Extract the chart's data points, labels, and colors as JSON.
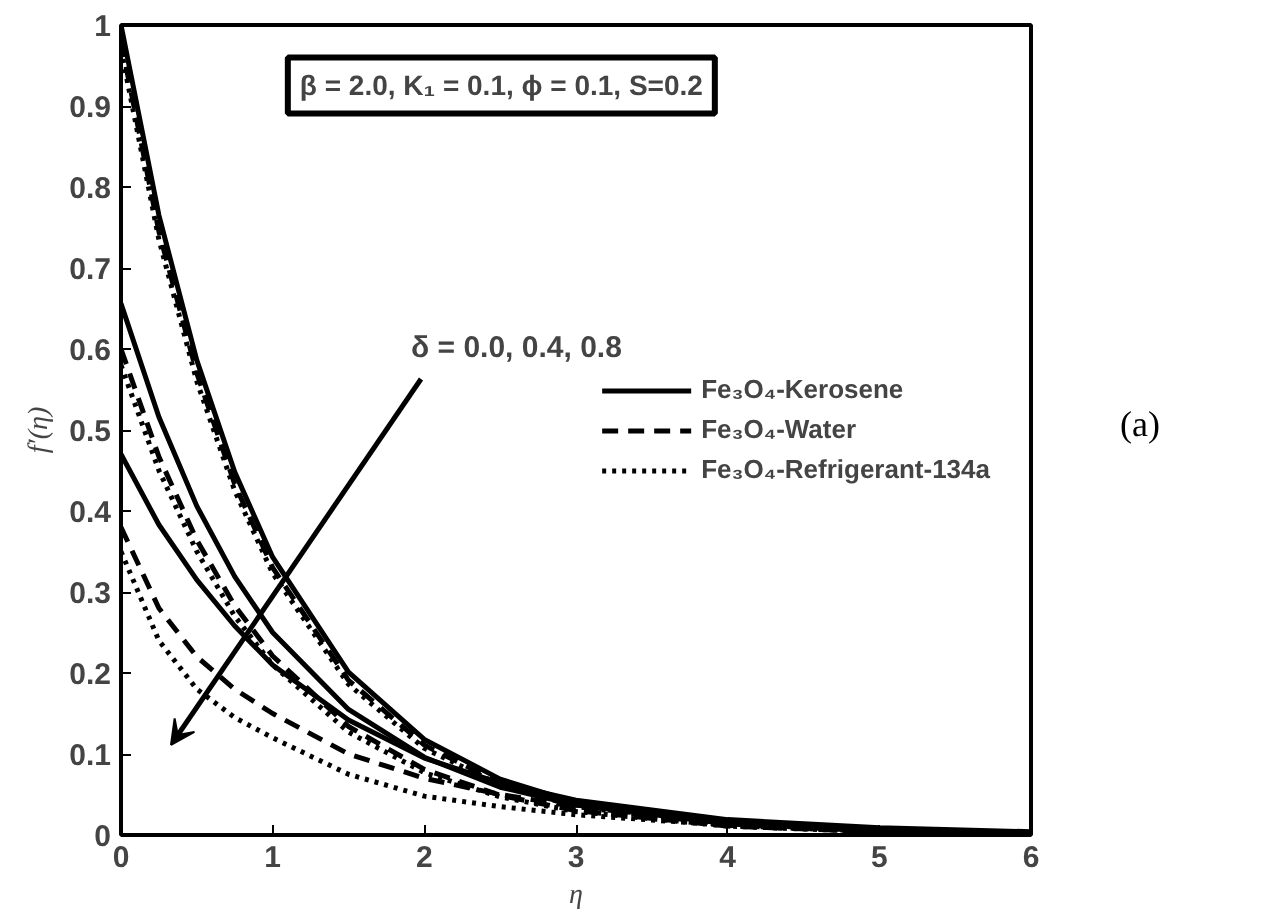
{
  "chart_data": {
    "type": "line",
    "xlabel": "η",
    "ylabel": "f′(η)",
    "x": [
      0,
      0.25,
      0.5,
      0.75,
      1,
      1.5,
      2,
      2.5,
      3,
      4,
      5,
      6
    ],
    "xlim": [
      0,
      6
    ],
    "xticks": [
      0,
      1,
      2,
      3,
      4,
      5,
      6
    ],
    "ylim": [
      0,
      1
    ],
    "yticks": [
      0,
      0.1,
      0.2,
      0.3,
      0.4,
      0.5,
      0.6,
      0.7,
      0.8,
      0.9,
      1
    ],
    "grid": false,
    "legend": "right",
    "series": [
      {
        "name": "Fe₃O₄-Kerosene",
        "color": "#000000",
        "line_style": "solid",
        "values": [
          1,
          0.765,
          0.586,
          0.448,
          0.343,
          0.201,
          0.118,
          0.069,
          0.04,
          0.014,
          0.005,
          0.002
        ]
      },
      {
        "name": "Fe₃O₄-Water",
        "color": "#000000",
        "line_style": "dashed",
        "values": [
          0.98,
          0.745,
          0.57,
          0.433,
          0.33,
          0.191,
          0.111,
          0.064,
          0.037,
          0.012,
          0.004,
          0.001
        ]
      },
      {
        "name": "Fe₃O₄-Refrigerant-134a",
        "color": "#000000",
        "line_style": "dotted",
        "values": [
          0.97,
          0.735,
          0.56,
          0.425,
          0.323,
          0.186,
          0.107,
          0.062,
          0.035,
          0.012,
          0.004,
          0.001
        ]
      },
      {
        "color": "#000000",
        "line_style": "solid",
        "values": [
          0.656,
          0.516,
          0.406,
          0.319,
          0.25,
          0.155,
          0.096,
          0.059,
          0.037,
          0.014,
          0.005,
          0.002
        ]
      },
      {
        "color": "#000000",
        "line_style": "dashed",
        "values": [
          0.6,
          0.467,
          0.364,
          0.283,
          0.221,
          0.134,
          0.081,
          0.049,
          0.03,
          0.011,
          0.004,
          0.001
        ]
      },
      {
        "color": "#000000",
        "line_style": "dotted",
        "values": [
          0.58,
          0.45,
          0.35,
          0.27,
          0.21,
          0.127,
          0.077,
          0.047,
          0.029,
          0.011,
          0.004,
          0.001
        ]
      },
      {
        "color": "#000000",
        "line_style": "solid",
        "values": [
          0.47,
          0.383,
          0.315,
          0.258,
          0.21,
          0.142,
          0.095,
          0.064,
          0.043,
          0.019,
          0.009,
          0.004
        ]
      },
      {
        "color": "#000000",
        "line_style": "dashed",
        "values": [
          0.38,
          0.28,
          0.22,
          0.18,
          0.15,
          0.1,
          0.07,
          0.05,
          0.035,
          0.015,
          0.007,
          0.003
        ]
      },
      {
        "color": "#000000",
        "line_style": "dotted",
        "values": [
          0.35,
          0.24,
          0.18,
          0.145,
          0.12,
          0.075,
          0.048,
          0.035,
          0.025,
          0.012,
          0.005,
          0.002
        ]
      }
    ],
    "annotations": [
      "β = 2.0, K₁ = 0.1, ϕ = 0.1, S=0.2",
      "δ = 0.0, 0.4, 0.8",
      "(a)"
    ]
  }
}
